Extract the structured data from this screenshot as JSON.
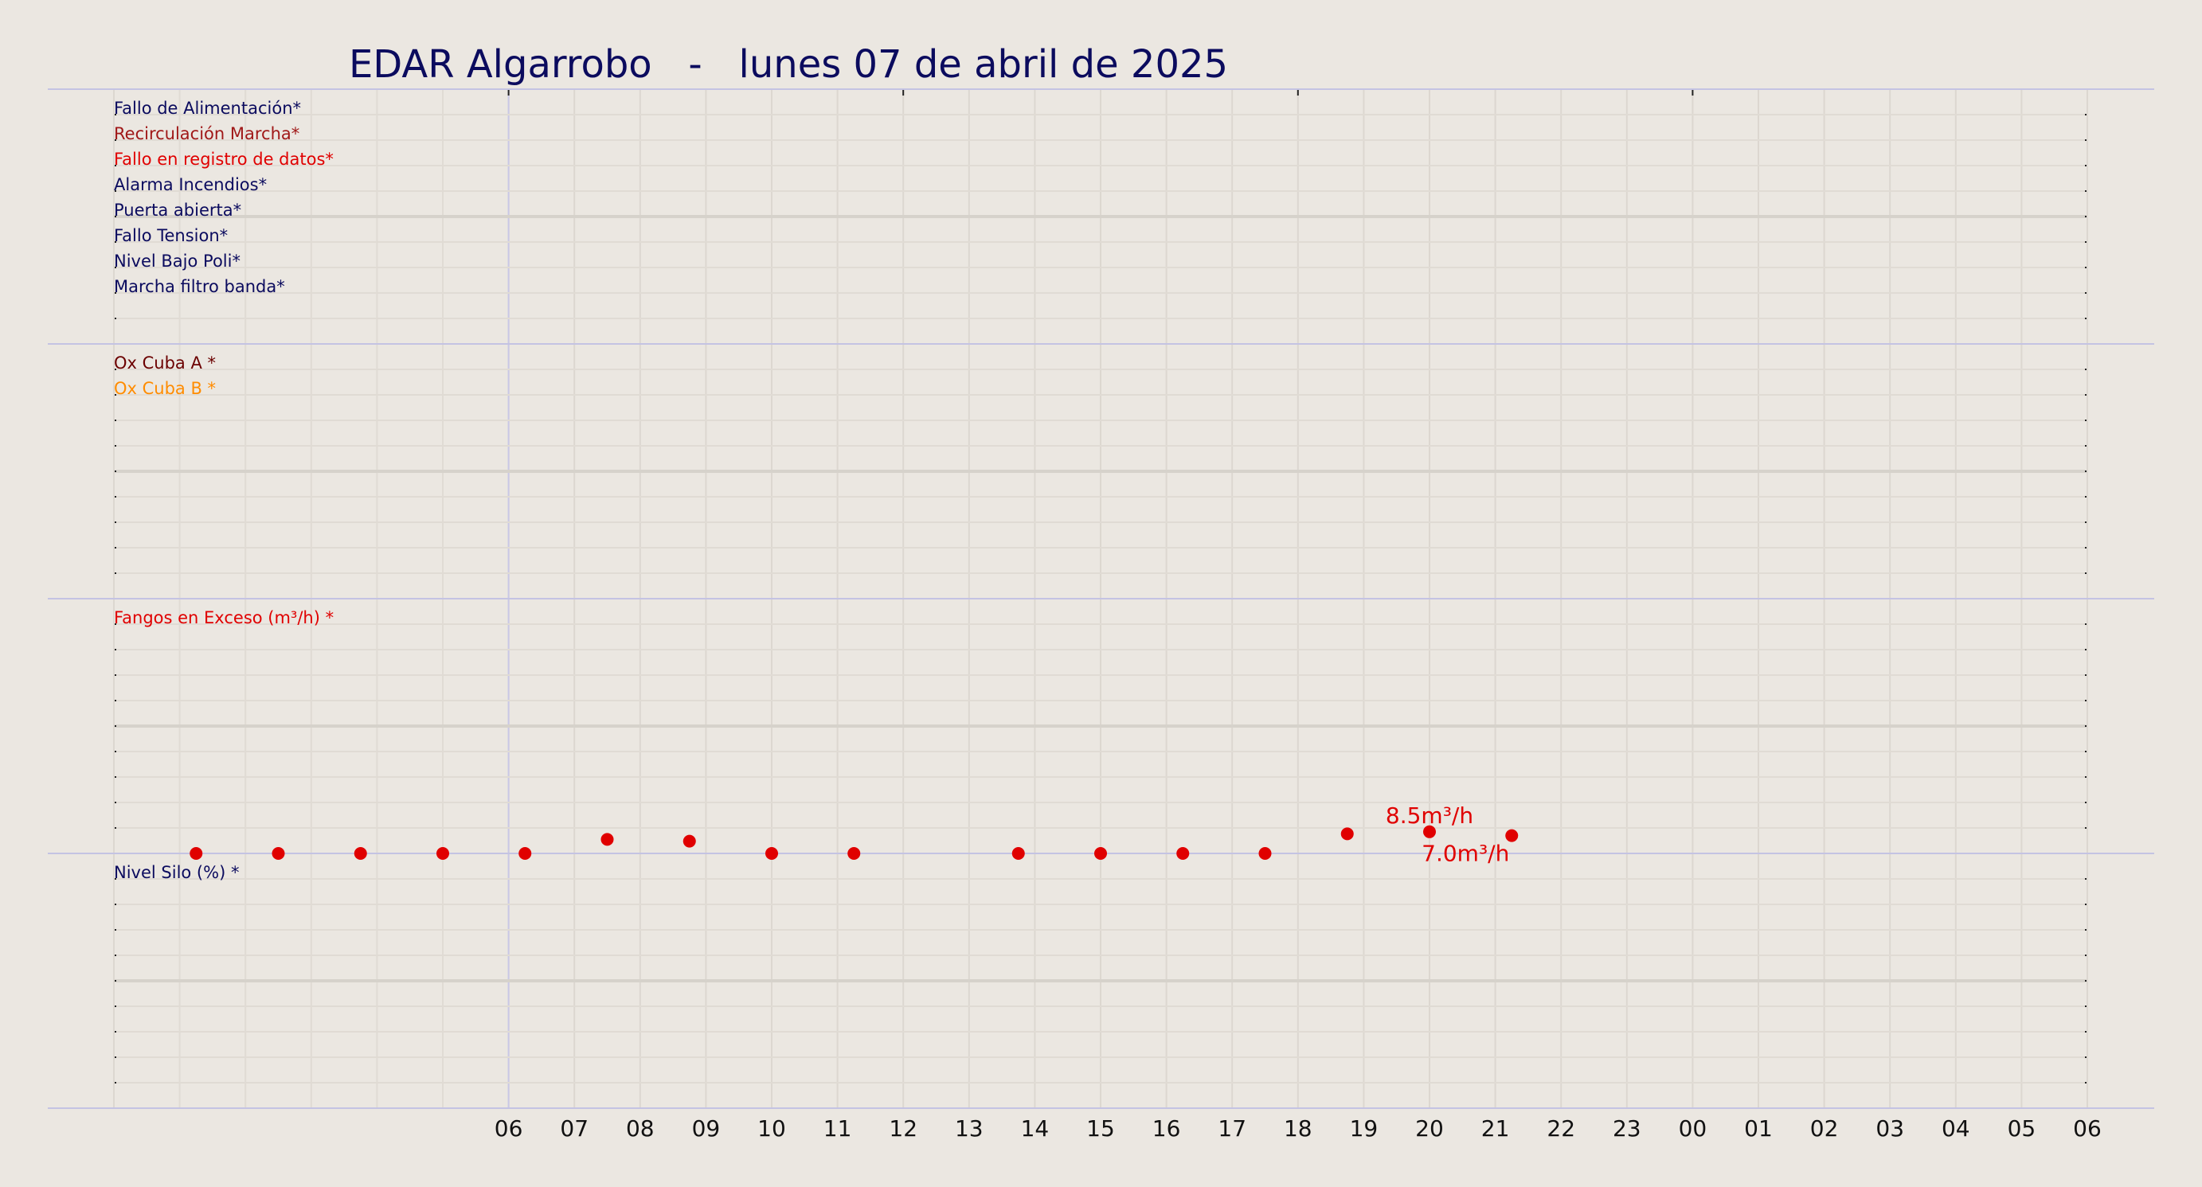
{
  "chart_data": {
    "type": "scatter",
    "title": "EDAR Algarrobo   -   lunes 07 de abril de 2025",
    "x_ticks": [
      "06",
      "07",
      "08",
      "09",
      "10",
      "11",
      "12",
      "13",
      "14",
      "15",
      "16",
      "17",
      "18",
      "19",
      "20",
      "21",
      "22",
      "23",
      "00",
      "01",
      "02",
      "03",
      "04",
      "05",
      "06"
    ],
    "xlim": [
      0,
      30
    ],
    "grid": true,
    "panels": [
      {
        "labels": [
          {
            "text": "Fallo de Alimentación*",
            "color": "#0b0b5e"
          },
          {
            "text": "Recirculación Marcha*",
            "color": "#a01818"
          },
          {
            "text": "Fallo en registro de datos*",
            "color": "#e00000"
          },
          {
            "text": "Alarma Incendios*",
            "color": "#0b0b5e"
          },
          {
            "text": "Puerta abierta*",
            "color": "#0b0b5e"
          },
          {
            "text": "Fallo Tension*",
            "color": "#0b0b5e"
          },
          {
            "text": "Nivel Bajo Poli*",
            "color": "#0b0b5e"
          },
          {
            "text": "Marcha filtro banda*",
            "color": "#0b0b5e"
          }
        ]
      },
      {
        "labels": [
          {
            "text": "Ox Cuba A *",
            "color": "#6b0000"
          },
          {
            "text": "Ox Cuba B *",
            "color": "#ff8c00"
          }
        ]
      },
      {
        "labels": [
          {
            "text": "Fangos en Exceso (m³/h) *",
            "color": "#e00000"
          }
        ],
        "series": [
          {
            "color": "#e00000",
            "unit": "m³/h",
            "x": [
              1.25,
              2.5,
              3.75,
              5.0,
              6.25,
              7.5,
              8.75,
              10.0,
              11.25,
              13.75,
              15.0,
              16.25,
              17.5,
              18.75,
              20.0,
              21.25
            ],
            "y": [
              0,
              0,
              0,
              0,
              0,
              5.5,
              4.8,
              0,
              0,
              0,
              0,
              0,
              0,
              7.7,
              8.5,
              7.0
            ]
          }
        ],
        "ylim": [
          0,
          100
        ],
        "annotations": [
          {
            "text": "8.5m³/h",
            "x": 20.0,
            "y": 8.5
          },
          {
            "text": "7.0m³/h",
            "x": 21.25,
            "y": 7.0
          }
        ]
      },
      {
        "labels": [
          {
            "text": "Nivel Silo (%) *",
            "color": "#0b0b5e"
          }
        ]
      }
    ]
  }
}
